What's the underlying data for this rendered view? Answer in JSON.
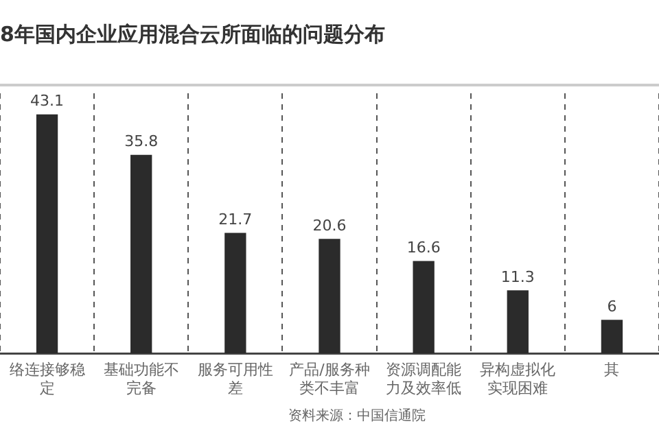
{
  "chart_data": {
    "type": "bar",
    "title": "8年国内企业应用混合云所面临的问题分布",
    "categories": [
      "络连接够稳定",
      "基础功能不完备",
      "服务可用性差",
      "产品/服务种类不丰富",
      "资源调配能力及效率低",
      "异构虚拟化实现困难",
      "其"
    ],
    "values": [
      43.1,
      35.8,
      21.7,
      20.6,
      16.6,
      11.3,
      6.0
    ],
    "value_labels": [
      "43.1",
      "35.8",
      "21.7",
      "20.6",
      "16.6",
      "11.3",
      "6"
    ],
    "color": "#2b2b2b",
    "ylim": [
      0,
      47
    ],
    "tick_labels": "x",
    "grid": "x",
    "annotations": [
      "资料来源：中国信通院"
    ]
  }
}
